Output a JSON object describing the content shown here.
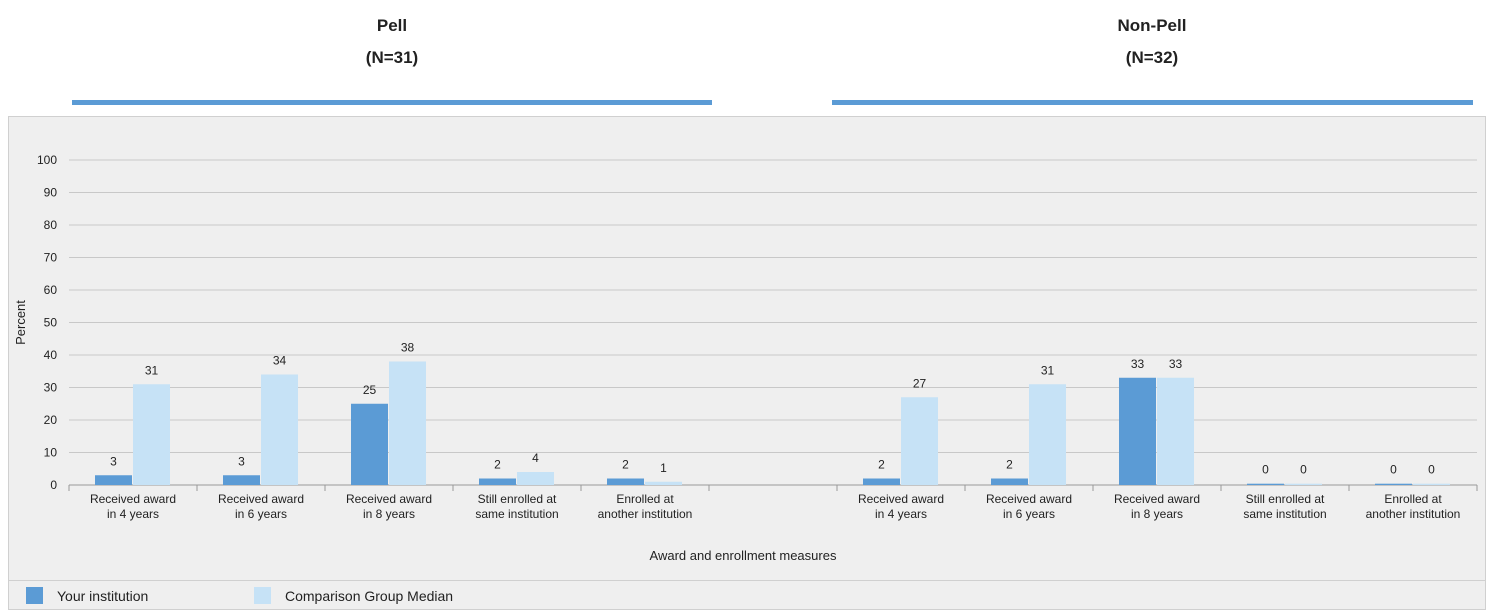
{
  "groups": [
    {
      "name": "Pell",
      "n_label": "(N=31)"
    },
    {
      "name": "Non-Pell",
      "n_label": "(N=32)"
    }
  ],
  "legend": {
    "series_1": "Your institution",
    "series_2": "Comparison Group Median"
  },
  "colors": {
    "your_institution": "#5b9bd5",
    "comparison_median": "#c6e2f6",
    "group_rule": "#5b9bd5",
    "grid": "#c8c8c8",
    "panel_bg": "#efefef"
  },
  "chart_data": {
    "type": "bar",
    "ylabel": "Percent",
    "xlabel": "Award and enrollment measures",
    "ylim": [
      0,
      100
    ],
    "yticks": [
      0,
      10,
      20,
      30,
      40,
      50,
      60,
      70,
      80,
      90,
      100
    ],
    "grid": true,
    "legend_position": "bottom-left",
    "categories": [
      [
        "Received award",
        "in 4 years"
      ],
      [
        "Received award",
        "in 6 years"
      ],
      [
        "Received award",
        "in 8 years"
      ],
      [
        "Still enrolled at",
        "same institution"
      ],
      [
        "Enrolled at",
        "another institution"
      ],
      [
        "",
        ""
      ],
      [
        "Received award",
        "in 4 years"
      ],
      [
        "Received award",
        "in 6 years"
      ],
      [
        "Received award",
        "in 8 years"
      ],
      [
        "Still enrolled at",
        "same institution"
      ],
      [
        "Enrolled at",
        "another institution"
      ]
    ],
    "series": [
      {
        "name": "Your institution",
        "values": [
          3,
          3,
          25,
          2,
          2,
          null,
          2,
          2,
          33,
          0,
          0
        ],
        "labels": [
          "3",
          "3",
          "25",
          "2",
          "2",
          "",
          "2",
          "2",
          "33",
          "0",
          "0"
        ]
      },
      {
        "name": "Comparison Group Median",
        "values": [
          31,
          34,
          38,
          4,
          1,
          null,
          27,
          31,
          33,
          0,
          0
        ],
        "labels": [
          "31",
          "34",
          "38",
          "4",
          "1",
          "",
          "27",
          "31",
          "33",
          "0",
          "0"
        ]
      }
    ]
  }
}
